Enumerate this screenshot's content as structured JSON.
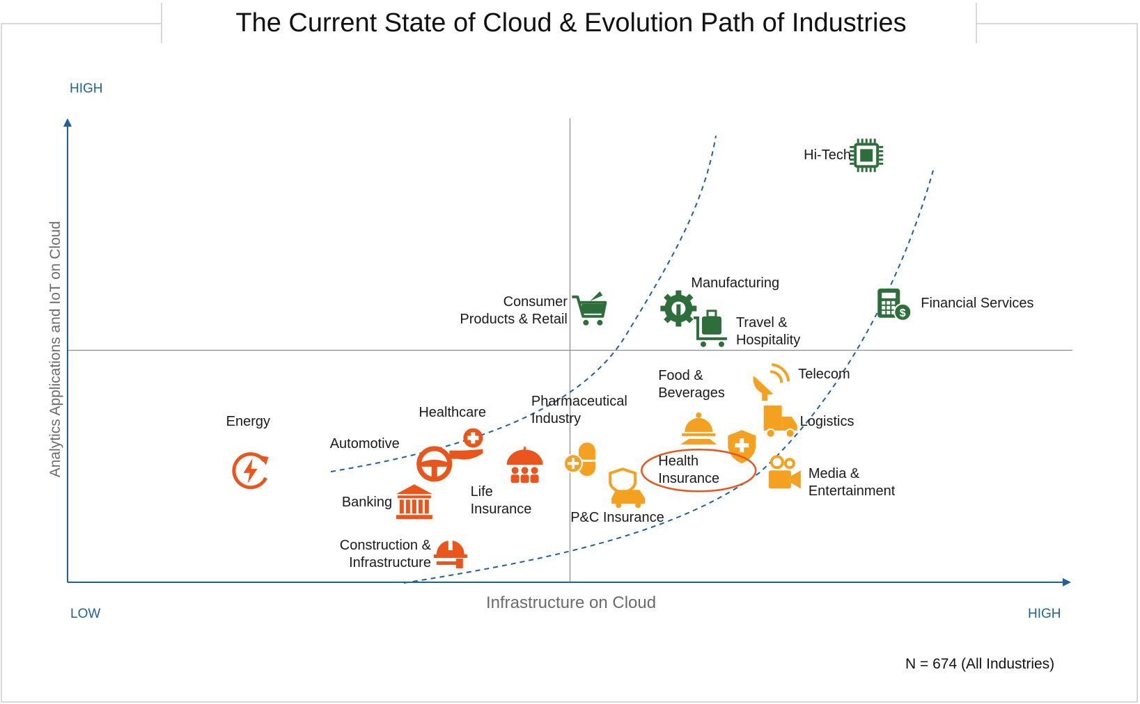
{
  "title": "The Current State of Cloud & Evolution Path of Industries",
  "axes": {
    "x_label": "Infrastructure on Cloud",
    "y_label": "Analytics Applications and IoT on Cloud",
    "y_high": "HIGH",
    "x_low": "LOW",
    "x_high": "HIGH"
  },
  "note": "N = 674 (All Industries)",
  "colors": {
    "axis": "#1f5f9b",
    "curve": "#1f5f9b",
    "dark_orange": "#e8561e",
    "orange": "#f4a020",
    "green": "#2e6e3a",
    "highlight": "#e8561e",
    "quadrant_line": "#8a8a8a"
  },
  "chart_data": {
    "type": "scatter",
    "title": "The Current State of Cloud & Evolution Path of Industries",
    "xlabel": "Infrastructure on Cloud",
    "ylabel": "Analytics Applications and IoT on Cloud",
    "xlim": [
      0,
      1
    ],
    "ylim": [
      0,
      1
    ],
    "quadrant_dividers": {
      "x": 0.5,
      "y": 0.5
    },
    "highlighted": "Health Insurance",
    "points": [
      {
        "name": "Hi-Tech",
        "lines": [
          "Hi-Tech"
        ],
        "x": 0.795,
        "y": 0.92,
        "color": "green",
        "icon": "chip-icon"
      },
      {
        "name": "Manufacturing",
        "lines": [
          "Manufacturing"
        ],
        "x": 0.608,
        "y": 0.59,
        "color": "green",
        "icon": "gear-wrench-icon"
      },
      {
        "name": "Consumer Products & Retail",
        "lines": [
          "Consumer",
          "Products & Retail"
        ],
        "x": 0.52,
        "y": 0.585,
        "color": "green",
        "icon": "shopping-cart-icon"
      },
      {
        "name": "Travel & Hospitality",
        "lines": [
          "Travel &",
          "Hospitality"
        ],
        "x": 0.641,
        "y": 0.54,
        "color": "green",
        "icon": "luggage-cart-icon"
      },
      {
        "name": "Financial Services",
        "lines": [
          "Financial Services"
        ],
        "x": 0.82,
        "y": 0.6,
        "color": "green",
        "icon": "calculator-dollar-icon"
      },
      {
        "name": "Telecom",
        "lines": [
          "Telecom"
        ],
        "x": 0.698,
        "y": 0.43,
        "color": "orange",
        "icon": "satellite-dish-icon"
      },
      {
        "name": "Food & Beverages",
        "lines": [
          "Food &",
          "Beverages"
        ],
        "x": 0.628,
        "y": 0.33,
        "color": "orange",
        "icon": "food-cloche-icon"
      },
      {
        "name": "Logistics",
        "lines": [
          "Logistics"
        ],
        "x": 0.708,
        "y": 0.345,
        "color": "orange",
        "icon": "delivery-truck-icon"
      },
      {
        "name": "Health Insurance",
        "lines": [
          "Health",
          "Insurance"
        ],
        "x": 0.671,
        "y": 0.295,
        "color": "orange",
        "icon": "health-shield-icon"
      },
      {
        "name": "Media & Entertainment",
        "lines": [
          "Media &",
          "Entertainment"
        ],
        "x": 0.713,
        "y": 0.232,
        "color": "orange",
        "icon": "video-camera-icon"
      },
      {
        "name": "Pharmaceutical Industry",
        "lines": [
          "Pharmaceutical",
          "Industry"
        ],
        "x": 0.51,
        "y": 0.262,
        "color": "orange",
        "icon": "pill-icon"
      },
      {
        "name": "P&C Insurance",
        "lines": [
          "P&C Insurance"
        ],
        "x": 0.558,
        "y": 0.205,
        "color": "orange",
        "icon": "car-shield-icon"
      },
      {
        "name": "Healthcare",
        "lines": [
          "Healthcare"
        ],
        "x": 0.398,
        "y": 0.29,
        "color": "dark_orange",
        "icon": "medical-hand-icon"
      },
      {
        "name": "Automotive",
        "lines": [
          "Automotive"
        ],
        "x": 0.365,
        "y": 0.255,
        "color": "dark_orange",
        "icon": "steering-wheel-icon"
      },
      {
        "name": "Life Insurance",
        "lines": [
          "Life",
          "Insurance"
        ],
        "x": 0.455,
        "y": 0.25,
        "color": "dark_orange",
        "icon": "umbrella-family-icon"
      },
      {
        "name": "Energy",
        "lines": [
          "Energy"
        ],
        "x": 0.182,
        "y": 0.24,
        "color": "dark_orange",
        "icon": "lightning-cycle-icon"
      },
      {
        "name": "Banking",
        "lines": [
          "Banking"
        ],
        "x": 0.345,
        "y": 0.172,
        "color": "dark_orange",
        "icon": "bank-icon"
      },
      {
        "name": "Construction & Infrastructure",
        "lines": [
          "Construction &",
          "Infrastructure"
        ],
        "x": 0.381,
        "y": 0.06,
        "color": "dark_orange",
        "icon": "hard-hat-hammer-icon"
      }
    ]
  }
}
